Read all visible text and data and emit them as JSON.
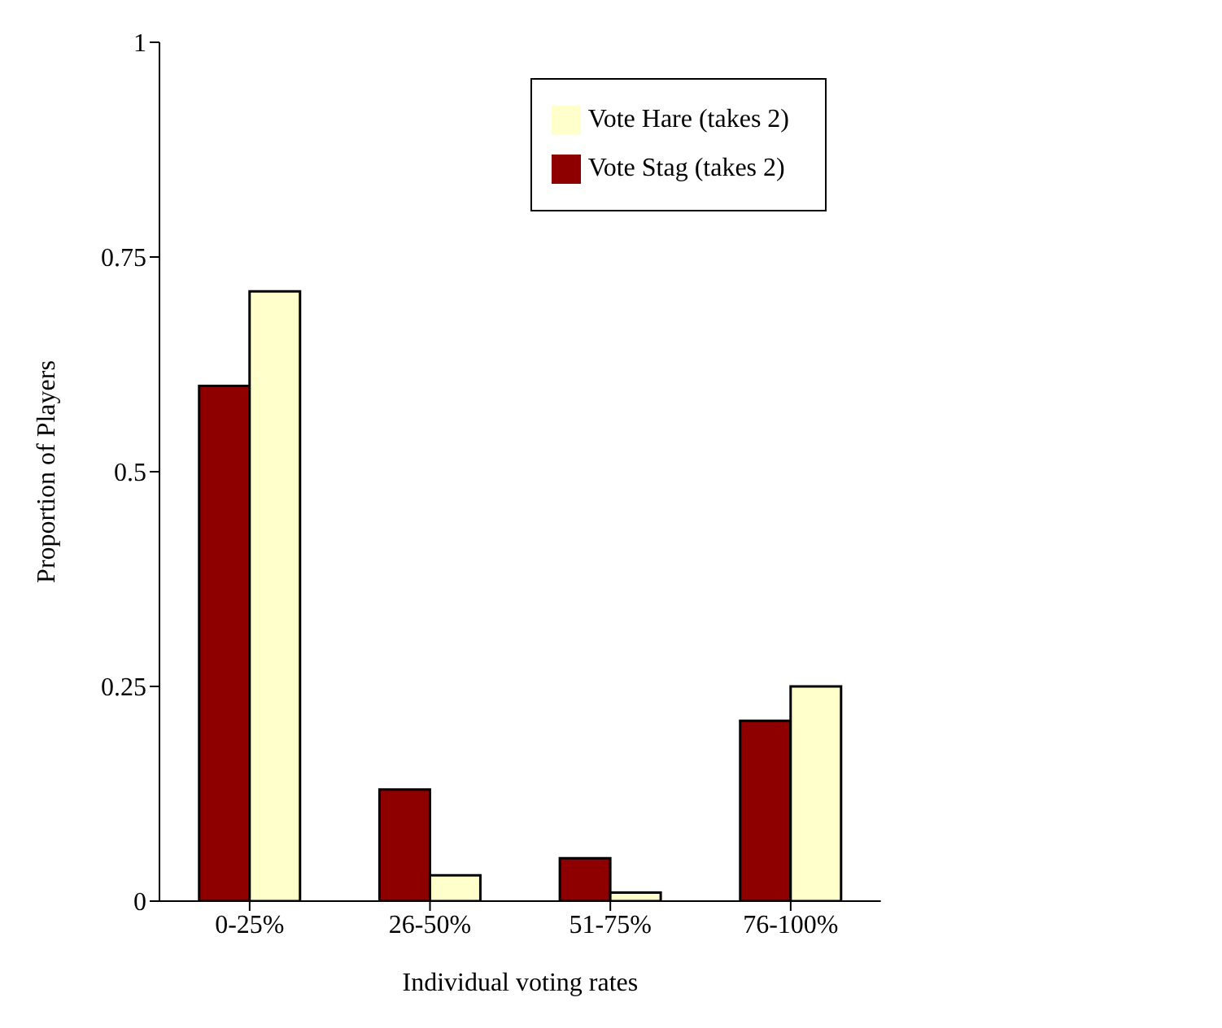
{
  "chart_data": {
    "type": "bar",
    "xlabel": "Individual voting rates",
    "ylabel": "Proportion of Players",
    "categories": [
      "0-25%",
      "26-50%",
      "51-75%",
      "76-100%"
    ],
    "series": [
      {
        "name": "Vote Stag (takes 2)",
        "color": "#8e0000",
        "values": [
          0.6,
          0.13,
          0.05,
          0.21
        ]
      },
      {
        "name": "Vote Hare (takes 2)",
        "color": "#ffffcc",
        "values": [
          0.71,
          0.03,
          0.01,
          0.25
        ]
      }
    ],
    "ylim": [
      0,
      1
    ],
    "yticks": [
      0,
      0.25,
      0.5,
      0.75,
      1
    ],
    "grid": false,
    "legend": "top right"
  }
}
